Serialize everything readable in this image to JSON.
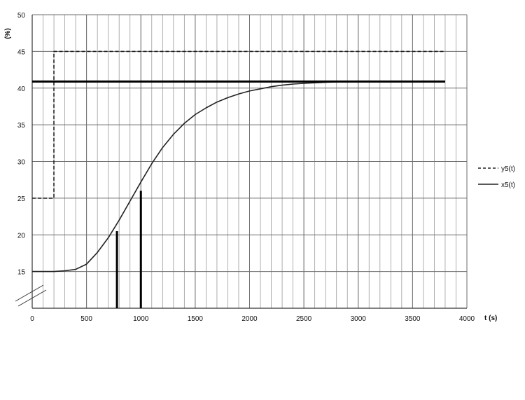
{
  "chart_data": {
    "type": "line",
    "title": "",
    "xlabel": "t (s)",
    "ylabel": "(%)",
    "xlim": [
      0,
      4000
    ],
    "ylim": [
      10,
      50
    ],
    "grid": true,
    "x_major_ticks": [
      0,
      500,
      1000,
      1500,
      2000,
      2500,
      3000,
      3500,
      4000
    ],
    "x_minor_step": 100,
    "y_ticks": [
      15,
      20,
      25,
      30,
      35,
      40,
      45,
      50
    ],
    "legend_position": "right",
    "series": [
      {
        "name": "y5(t)",
        "style": "dashed",
        "color": "#222222",
        "x": [
          0,
          200,
          200,
          3800
        ],
        "y": [
          25,
          25,
          45,
          45
        ]
      },
      {
        "name": "x5(t)",
        "style": "solid",
        "color": "#222222",
        "x": [
          0,
          200,
          300,
          400,
          500,
          600,
          700,
          800,
          900,
          1000,
          1100,
          1200,
          1300,
          1400,
          1500,
          1600,
          1700,
          1800,
          1900,
          2000,
          2100,
          2200,
          2300,
          2400,
          2500,
          2600,
          2700,
          2800,
          2900,
          3000,
          3100,
          3200,
          3300,
          3800
        ],
        "y": [
          15,
          15,
          15.1,
          15.3,
          16,
          17.6,
          19.6,
          22,
          24.6,
          27.2,
          29.7,
          31.9,
          33.7,
          35.2,
          36.4,
          37.3,
          38.1,
          38.7,
          39.2,
          39.6,
          39.9,
          40.2,
          40.4,
          40.55,
          40.65,
          40.72,
          40.8,
          40.85,
          40.88,
          40.9,
          40.92,
          40.93,
          40.95,
          40.95
        ]
      }
    ],
    "annotations": [
      {
        "type": "hline",
        "y": 40.9,
        "x_from": 0,
        "x_to": 3800
      },
      {
        "type": "vline",
        "x": 780,
        "y_from": 10,
        "y_to": 20.5
      },
      {
        "type": "vline",
        "x": 1000,
        "y_from": 10,
        "y_to": 26
      }
    ]
  }
}
